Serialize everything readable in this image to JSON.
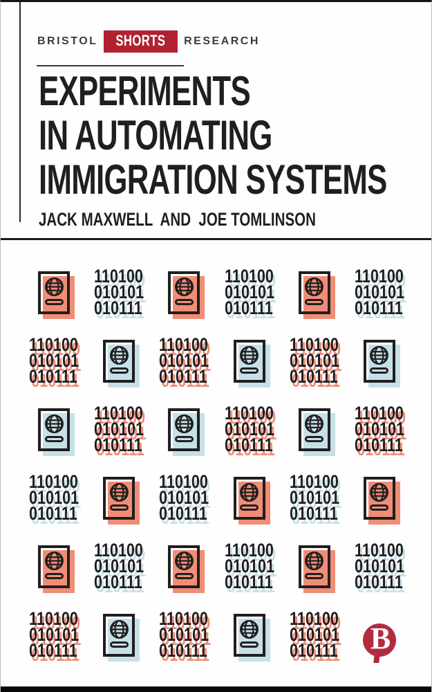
{
  "header": {
    "bristol": "BRISTOL",
    "shorts": "SHORTS",
    "research": "RESEARCH"
  },
  "title": {
    "lines": [
      "EXPERIMENTS",
      "IN AUTOMATING",
      "IMMIGRATION SYSTEMS"
    ]
  },
  "authors": "JACK MAXWELL  AND  JOE TOMLINSON",
  "pattern": {
    "binary_lines": [
      "110100",
      "010101",
      "010111"
    ],
    "grid": [
      [
        "passport-salmon",
        "binary-blue",
        "passport-salmon",
        "binary-blue",
        "passport-salmon",
        "binary-blue"
      ],
      [
        "binary-salmon",
        "passport-blue",
        "binary-salmon",
        "passport-blue",
        "binary-salmon",
        "passport-blue"
      ],
      [
        "passport-blue",
        "binary-salmon",
        "passport-blue",
        "binary-salmon",
        "passport-blue",
        "binary-salmon"
      ],
      [
        "binary-blue",
        "passport-salmon",
        "binary-blue",
        "passport-salmon",
        "binary-blue",
        "passport-salmon"
      ],
      [
        "passport-salmon",
        "binary-blue",
        "passport-salmon",
        "binary-blue",
        "passport-salmon",
        "binary-blue"
      ],
      [
        "binary-salmon",
        "passport-blue",
        "binary-salmon",
        "passport-blue",
        "binary-salmon",
        "logo"
      ]
    ],
    "icons": {
      "passport": "passport-with-globe-icon",
      "binary": "binary-code-block",
      "publisher": "bristol-university-press-b-icon"
    }
  },
  "publisher": {
    "letter": "B"
  },
  "colors": {
    "salmon": "#F08D76",
    "light_blue": "#C6E0E8",
    "ink": "#211E1F",
    "brand_red": "#B0222F",
    "logo_red": "#B12C40",
    "page_bg": "#FFFEFE"
  }
}
